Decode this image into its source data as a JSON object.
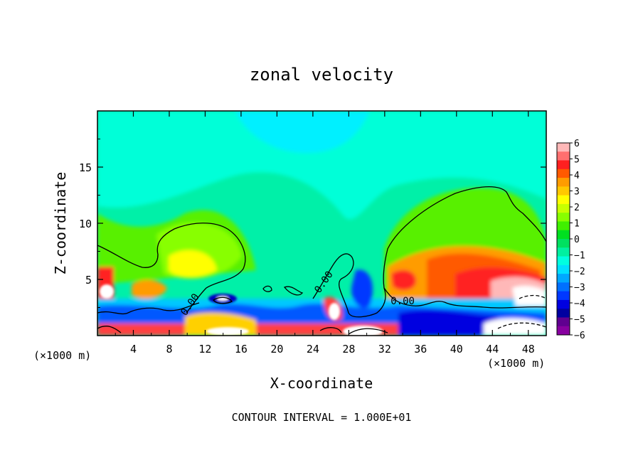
{
  "chart_data": {
    "type": "heatmap",
    "title": "zonal velocity",
    "xlabel": "X-coordinate",
    "ylabel": "Z-coordinate",
    "x_unit": "(×1000 m)",
    "x_unit_right": "(×1000 m)",
    "xlim": [
      0,
      50
    ],
    "ylim": [
      0,
      20
    ],
    "x_ticks": [
      4,
      8,
      12,
      16,
      20,
      24,
      28,
      32,
      36,
      40,
      44,
      48
    ],
    "y_ticks": [
      5,
      10,
      15
    ],
    "colorbar": {
      "min": -6,
      "max": 6,
      "labels": [
        "6",
        "5",
        "4",
        "3",
        "2",
        "1",
        "0",
        "−1",
        "−2",
        "−3",
        "−4",
        "−5",
        "−6"
      ],
      "bands": [
        "#ffb8b8",
        "#ff6f6f",
        "#ff2020",
        "#ff5a00",
        "#ff9c00",
        "#ffc800",
        "#ffff00",
        "#c8ff00",
        "#88ff00",
        "#40f000",
        "#00e020",
        "#00e060",
        "#00f0a0",
        "#00ffe0",
        "#00e0ff",
        "#00a8ff",
        "#0070ff",
        "#0038ff",
        "#0000e0",
        "#0000a0",
        "#600090",
        "#8800a0"
      ]
    },
    "contour_labels": [
      {
        "text": "0.00",
        "x": 10.6,
        "z": 2.6,
        "angle": -55
      },
      {
        "text": "0.00",
        "x": 25.5,
        "z": 4.6,
        "angle": -55
      },
      {
        "text": "0.00",
        "x": 34.0,
        "z": 2.8,
        "angle": 0
      }
    ],
    "footer": "CONTOUR INTERVAL = 1.000E+01"
  }
}
